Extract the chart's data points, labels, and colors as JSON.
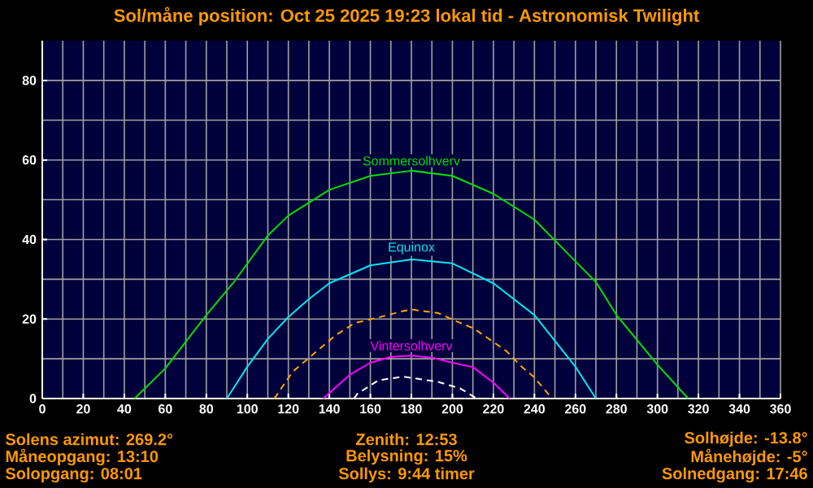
{
  "chart_data": {
    "type": "line",
    "title": "Sol/måne position: Oct 25 2025 19:23 lokal tid - Astronomisk Twilight",
    "xlim": [
      0,
      360
    ],
    "ylim": [
      0,
      90
    ],
    "xticks": [
      0,
      20,
      40,
      60,
      80,
      100,
      120,
      140,
      160,
      180,
      200,
      220,
      240,
      260,
      280,
      300,
      320,
      340,
      360
    ],
    "yticks": [
      0,
      20,
      40,
      60,
      80
    ],
    "grid": true,
    "marker": "none",
    "series": [
      {
        "name": "Sommersolhverv",
        "color": "#00e000",
        "line_style": "solid",
        "x": [
          45,
          60,
          80,
          93,
          110,
          120,
          140,
          160,
          180,
          200,
          220,
          240,
          260,
          270,
          280,
          300,
          315
        ],
        "values": [
          0,
          7.6,
          21,
          29,
          41,
          46,
          52.5,
          56,
          57.3,
          56,
          51.5,
          45,
          34.5,
          29.3,
          21,
          8.5,
          0
        ]
      },
      {
        "name": "Equinox",
        "color": "#00e8f0",
        "line_style": "solid",
        "x": [
          90,
          100,
          110,
          120,
          130,
          140,
          160,
          180,
          200,
          220,
          240,
          260,
          270
        ],
        "values": [
          0,
          8,
          15,
          20.5,
          25,
          29,
          33.5,
          35,
          34,
          29,
          21,
          8,
          0
        ]
      },
      {
        "color": "#ffa500",
        "line_style": "dashed",
        "x": [
          113,
          114,
          122,
          130,
          143,
          152.4,
          164,
          176,
          180,
          193,
          202.6,
          210.5,
          219.8,
          226.4,
          234,
          239.6,
          246.7,
          248
        ],
        "values": [
          0,
          0.6,
          6.7,
          10.2,
          15.9,
          19,
          20.4,
          22,
          22.4,
          21.5,
          19.3,
          17.6,
          14.3,
          11.9,
          7.9,
          5.5,
          1.2,
          0
        ]
      },
      {
        "name": "Vintersolhverv",
        "color": "#ff00ff",
        "line_style": "solid",
        "x": [
          137,
          150,
          160,
          170,
          180,
          190,
          200,
          210,
          220,
          225,
          228
        ],
        "values": [
          0,
          6,
          9,
          10.5,
          10.8,
          10.3,
          9,
          7.9,
          4,
          1.5,
          0
        ]
      },
      {
        "color": "#ffffff",
        "line_style": "dashed",
        "x": [
          152,
          153.7,
          164,
          176,
          180,
          193,
          204,
          210,
          212
        ],
        "values": [
          0,
          1.2,
          4.6,
          5.5,
          5.2,
          4.2,
          2.5,
          0.6,
          0
        ]
      }
    ],
    "annotations": [
      "Solens azimut: 269.2°",
      "Måneopgang: 13:10",
      "Solopgang: 08:01",
      "Zenith: 12:53",
      "Belysning: 15%",
      "Sollys: 9:44 timer",
      "Solhøjde: -13.8°",
      "Månehøjde: -5°",
      "Solnedgang: 17:46"
    ]
  }
}
